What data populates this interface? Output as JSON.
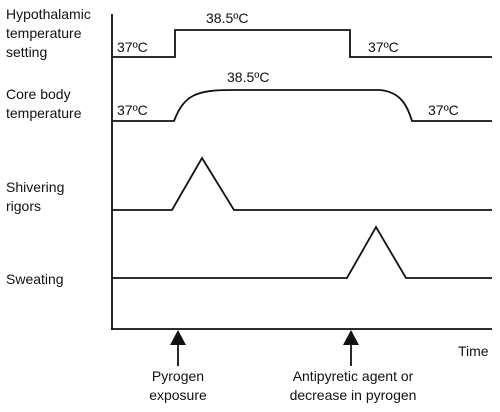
{
  "rows": {
    "hypothalamic": {
      "label_line1": "Hypothalamic",
      "label_line2": "temperature",
      "label_line3": "setting",
      "baseline_before": "37ºC",
      "elevated": "38.5ºC",
      "baseline_after": "37ºC"
    },
    "core": {
      "label_line1": "Core body",
      "label_line2": "temperature",
      "baseline_before": "37ºC",
      "elevated": "38.5ºC",
      "baseline_after": "37ºC"
    },
    "shivering": {
      "label_line1": "Shivering",
      "label_line2": "rigors"
    },
    "sweating": {
      "label_line1": "Sweating"
    }
  },
  "axis": {
    "time_label": "Time"
  },
  "events": {
    "pyrogen": {
      "line1": "Pyrogen",
      "line2": "exposure"
    },
    "antipyretic": {
      "line1": "Antipyretic agent or",
      "line2": "decrease in pyrogen"
    }
  }
}
